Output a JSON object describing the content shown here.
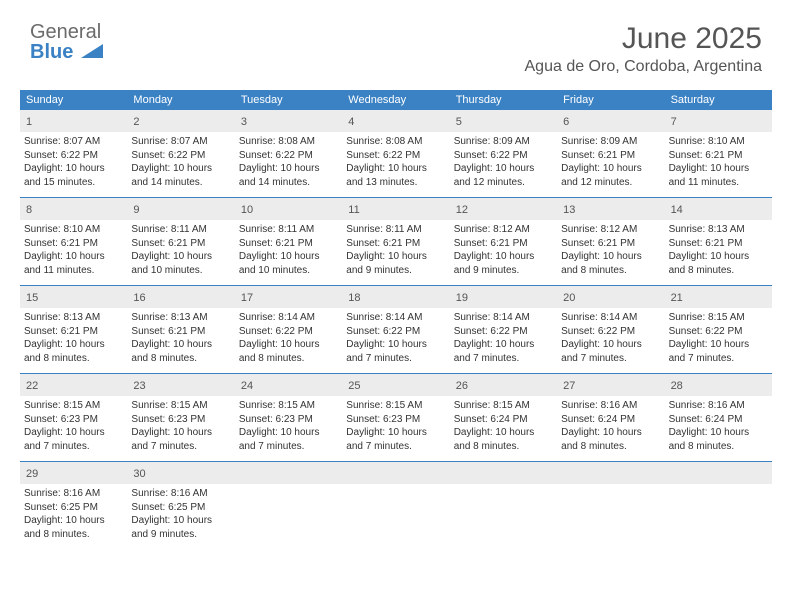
{
  "brand": {
    "line1": "General",
    "line2": "Blue"
  },
  "title": "June 2025",
  "location": "Agua de Oro, Cordoba, Argentina",
  "colors": {
    "header_bg": "#3b82c4",
    "daynum_bg": "#ececec",
    "text": "#333333",
    "title_text": "#555555",
    "brand_gray": "#6b6b6b",
    "brand_blue": "#3b82c4",
    "page_bg": "#ffffff"
  },
  "typography": {
    "title_fontsize_pt": 22,
    "location_fontsize_pt": 12,
    "dayheader_fontsize_pt": 8,
    "body_fontsize_pt": 7.5
  },
  "day_names": [
    "Sunday",
    "Monday",
    "Tuesday",
    "Wednesday",
    "Thursday",
    "Friday",
    "Saturday"
  ],
  "weeks": [
    [
      {
        "n": "1",
        "sr": "Sunrise: 8:07 AM",
        "ss": "Sunset: 6:22 PM",
        "d1": "Daylight: 10 hours",
        "d2": "and 15 minutes."
      },
      {
        "n": "2",
        "sr": "Sunrise: 8:07 AM",
        "ss": "Sunset: 6:22 PM",
        "d1": "Daylight: 10 hours",
        "d2": "and 14 minutes."
      },
      {
        "n": "3",
        "sr": "Sunrise: 8:08 AM",
        "ss": "Sunset: 6:22 PM",
        "d1": "Daylight: 10 hours",
        "d2": "and 14 minutes."
      },
      {
        "n": "4",
        "sr": "Sunrise: 8:08 AM",
        "ss": "Sunset: 6:22 PM",
        "d1": "Daylight: 10 hours",
        "d2": "and 13 minutes."
      },
      {
        "n": "5",
        "sr": "Sunrise: 8:09 AM",
        "ss": "Sunset: 6:22 PM",
        "d1": "Daylight: 10 hours",
        "d2": "and 12 minutes."
      },
      {
        "n": "6",
        "sr": "Sunrise: 8:09 AM",
        "ss": "Sunset: 6:21 PM",
        "d1": "Daylight: 10 hours",
        "d2": "and 12 minutes."
      },
      {
        "n": "7",
        "sr": "Sunrise: 8:10 AM",
        "ss": "Sunset: 6:21 PM",
        "d1": "Daylight: 10 hours",
        "d2": "and 11 minutes."
      }
    ],
    [
      {
        "n": "8",
        "sr": "Sunrise: 8:10 AM",
        "ss": "Sunset: 6:21 PM",
        "d1": "Daylight: 10 hours",
        "d2": "and 11 minutes."
      },
      {
        "n": "9",
        "sr": "Sunrise: 8:11 AM",
        "ss": "Sunset: 6:21 PM",
        "d1": "Daylight: 10 hours",
        "d2": "and 10 minutes."
      },
      {
        "n": "10",
        "sr": "Sunrise: 8:11 AM",
        "ss": "Sunset: 6:21 PM",
        "d1": "Daylight: 10 hours",
        "d2": "and 10 minutes."
      },
      {
        "n": "11",
        "sr": "Sunrise: 8:11 AM",
        "ss": "Sunset: 6:21 PM",
        "d1": "Daylight: 10 hours",
        "d2": "and 9 minutes."
      },
      {
        "n": "12",
        "sr": "Sunrise: 8:12 AM",
        "ss": "Sunset: 6:21 PM",
        "d1": "Daylight: 10 hours",
        "d2": "and 9 minutes."
      },
      {
        "n": "13",
        "sr": "Sunrise: 8:12 AM",
        "ss": "Sunset: 6:21 PM",
        "d1": "Daylight: 10 hours",
        "d2": "and 8 minutes."
      },
      {
        "n": "14",
        "sr": "Sunrise: 8:13 AM",
        "ss": "Sunset: 6:21 PM",
        "d1": "Daylight: 10 hours",
        "d2": "and 8 minutes."
      }
    ],
    [
      {
        "n": "15",
        "sr": "Sunrise: 8:13 AM",
        "ss": "Sunset: 6:21 PM",
        "d1": "Daylight: 10 hours",
        "d2": "and 8 minutes."
      },
      {
        "n": "16",
        "sr": "Sunrise: 8:13 AM",
        "ss": "Sunset: 6:21 PM",
        "d1": "Daylight: 10 hours",
        "d2": "and 8 minutes."
      },
      {
        "n": "17",
        "sr": "Sunrise: 8:14 AM",
        "ss": "Sunset: 6:22 PM",
        "d1": "Daylight: 10 hours",
        "d2": "and 8 minutes."
      },
      {
        "n": "18",
        "sr": "Sunrise: 8:14 AM",
        "ss": "Sunset: 6:22 PM",
        "d1": "Daylight: 10 hours",
        "d2": "and 7 minutes."
      },
      {
        "n": "19",
        "sr": "Sunrise: 8:14 AM",
        "ss": "Sunset: 6:22 PM",
        "d1": "Daylight: 10 hours",
        "d2": "and 7 minutes."
      },
      {
        "n": "20",
        "sr": "Sunrise: 8:14 AM",
        "ss": "Sunset: 6:22 PM",
        "d1": "Daylight: 10 hours",
        "d2": "and 7 minutes."
      },
      {
        "n": "21",
        "sr": "Sunrise: 8:15 AM",
        "ss": "Sunset: 6:22 PM",
        "d1": "Daylight: 10 hours",
        "d2": "and 7 minutes."
      }
    ],
    [
      {
        "n": "22",
        "sr": "Sunrise: 8:15 AM",
        "ss": "Sunset: 6:23 PM",
        "d1": "Daylight: 10 hours",
        "d2": "and 7 minutes."
      },
      {
        "n": "23",
        "sr": "Sunrise: 8:15 AM",
        "ss": "Sunset: 6:23 PM",
        "d1": "Daylight: 10 hours",
        "d2": "and 7 minutes."
      },
      {
        "n": "24",
        "sr": "Sunrise: 8:15 AM",
        "ss": "Sunset: 6:23 PM",
        "d1": "Daylight: 10 hours",
        "d2": "and 7 minutes."
      },
      {
        "n": "25",
        "sr": "Sunrise: 8:15 AM",
        "ss": "Sunset: 6:23 PM",
        "d1": "Daylight: 10 hours",
        "d2": "and 7 minutes."
      },
      {
        "n": "26",
        "sr": "Sunrise: 8:15 AM",
        "ss": "Sunset: 6:24 PM",
        "d1": "Daylight: 10 hours",
        "d2": "and 8 minutes."
      },
      {
        "n": "27",
        "sr": "Sunrise: 8:16 AM",
        "ss": "Sunset: 6:24 PM",
        "d1": "Daylight: 10 hours",
        "d2": "and 8 minutes."
      },
      {
        "n": "28",
        "sr": "Sunrise: 8:16 AM",
        "ss": "Sunset: 6:24 PM",
        "d1": "Daylight: 10 hours",
        "d2": "and 8 minutes."
      }
    ],
    [
      {
        "n": "29",
        "sr": "Sunrise: 8:16 AM",
        "ss": "Sunset: 6:25 PM",
        "d1": "Daylight: 10 hours",
        "d2": "and 8 minutes."
      },
      {
        "n": "30",
        "sr": "Sunrise: 8:16 AM",
        "ss": "Sunset: 6:25 PM",
        "d1": "Daylight: 10 hours",
        "d2": "and 9 minutes."
      },
      null,
      null,
      null,
      null,
      null
    ]
  ]
}
